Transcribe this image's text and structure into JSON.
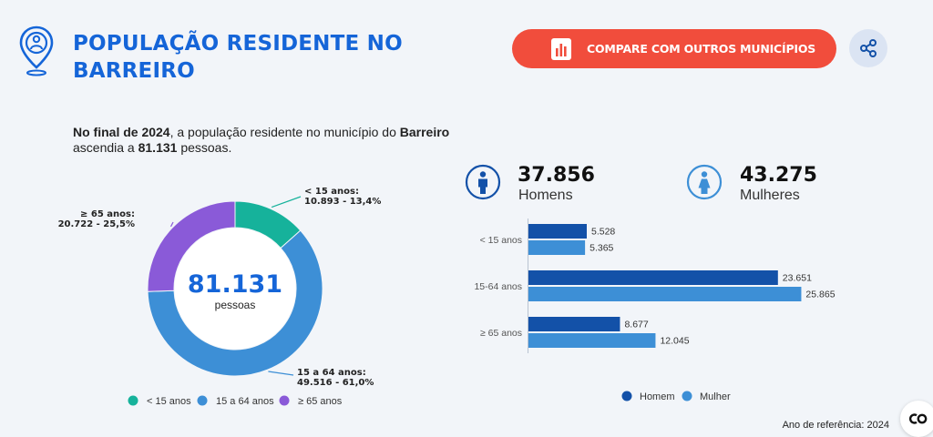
{
  "header": {
    "title": "POPULAÇÃO RESIDENTE NO BARREIRO",
    "location_icon": "location-pin-person-icon",
    "compare_label": "COMPARE COM OUTROS MUNICÍPIOS",
    "compare_icon": "bar-chart-icon",
    "share_icon": "share-icon"
  },
  "intro": {
    "lead": "No final de 2024",
    "text1": ", a população residente no município do ",
    "municipality": "Barreiro",
    "text2": " ascendia a ",
    "total": "81.131",
    "text3": " pessoas."
  },
  "gender": {
    "men_value": "37.856",
    "men_label": "Homens",
    "women_value": "43.275",
    "women_label": "Mulheres"
  },
  "footer": {
    "reference": "Ano de referência: 2024"
  },
  "colors": {
    "primary": "#1565d8",
    "accent": "#f14d3c",
    "teal": "#16b29b",
    "light_blue": "#3d8fd6",
    "purple": "#8a5ad8",
    "dark_blue": "#1351a8"
  },
  "chart_data": [
    {
      "type": "pie",
      "center_value": "81.131",
      "center_label": "pessoas",
      "slices": [
        {
          "label": "< 15 anos:",
          "value": 10893,
          "value_text": "10.893",
          "percent_text": "13,4%",
          "legend": "< 15 anos",
          "color": "#16b29b"
        },
        {
          "label": "15 a 64 anos:",
          "value": 49516,
          "value_text": "49.516",
          "percent_text": "61,0%",
          "legend": "15 a 64 anos",
          "color": "#3d8fd6"
        },
        {
          "label": "≥ 65 anos:",
          "value": 20722,
          "value_text": "20.722",
          "percent_text": "25,5%",
          "legend": "≥ 65 anos",
          "color": "#8a5ad8"
        }
      ]
    },
    {
      "type": "bar",
      "orientation": "horizontal",
      "categories": [
        "< 15 anos",
        "15-64 anos",
        "≥ 65 anos"
      ],
      "series": [
        {
          "name": "Homem",
          "color": "#1351a8",
          "values": [
            5528,
            23651,
            8677
          ],
          "labels": [
            "5.528",
            "23.651",
            "8.677"
          ]
        },
        {
          "name": "Mulher",
          "color": "#3d8fd6",
          "values": [
            5365,
            25865,
            12045
          ],
          "labels": [
            "5.365",
            "25.865",
            "12.045"
          ]
        }
      ],
      "xlim": [
        0,
        26000
      ]
    }
  ]
}
